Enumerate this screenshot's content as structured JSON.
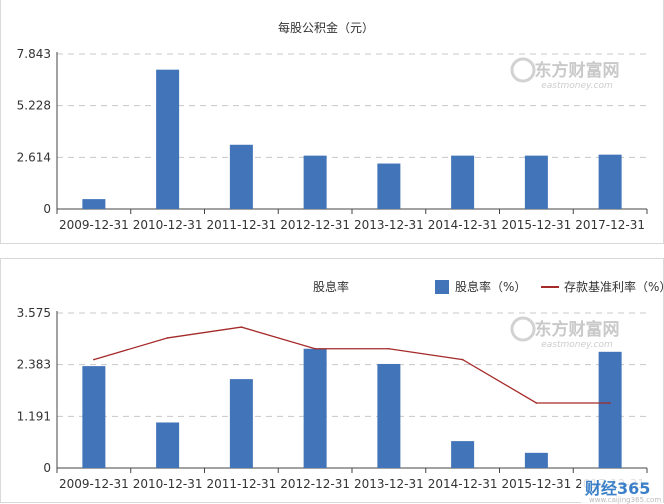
{
  "chart_data": [
    {
      "type": "bar",
      "title": "每股公积金（元）",
      "categories": [
        "2009-12-31",
        "2010-12-31",
        "2011-12-31",
        "2012-12-31",
        "2013-12-31",
        "2014-12-31",
        "2015-12-31",
        "2017-12-31"
      ],
      "series": [
        {
          "values": [
            0.5,
            7.05,
            3.25,
            2.7,
            2.3,
            2.7,
            2.7,
            2.75
          ]
        }
      ],
      "yticks": [
        "0",
        "2.614",
        "5.228",
        "7.843"
      ],
      "ylim": [
        0,
        7.843
      ],
      "grid": true,
      "colors": {
        "bar": "#4174b8"
      }
    },
    {
      "type": "bar",
      "title": "股息率",
      "categories": [
        "2009-12-31",
        "2010-12-31",
        "2011-12-31",
        "2012-12-31",
        "2013-12-31",
        "2014-12-31",
        "2015-12-31",
        "2017-12-31"
      ],
      "series": [
        {
          "name": "股息率（%）",
          "type": "bar",
          "values": [
            2.35,
            1.05,
            2.05,
            2.75,
            2.4,
            0.62,
            0.35,
            2.68
          ]
        },
        {
          "name": "存款基准利率（%）",
          "type": "line",
          "values": [
            2.5,
            3.0,
            3.25,
            2.75,
            2.75,
            2.5,
            1.5,
            1.5
          ]
        }
      ],
      "yticks": [
        "0",
        "1.191",
        "2.383",
        "3.575"
      ],
      "ylim": [
        0,
        3.575
      ],
      "grid": true,
      "legend": "top-right",
      "colors": {
        "bar": "#4174b8",
        "line": "#a52a2a"
      }
    }
  ],
  "watermark": {
    "cn": "东方财富网",
    "en": "eastmoney.com"
  },
  "brand": {
    "text": "财经365",
    "url": "www.caijing365.com"
  }
}
